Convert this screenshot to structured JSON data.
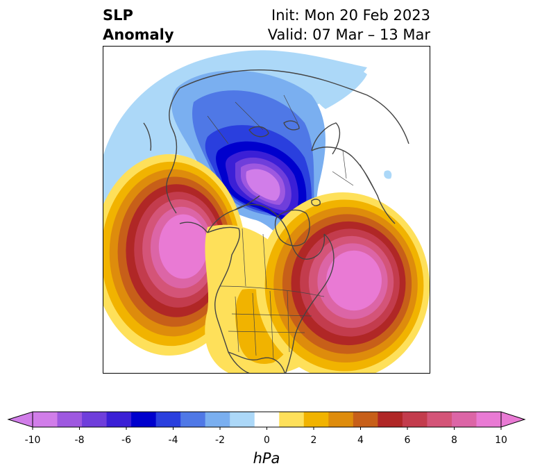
{
  "title": {
    "variable": "SLP",
    "kind": "Anomaly",
    "init": "Init: Mon 20 Feb 2023",
    "valid": "Valid: 07 Mar – 13 Mar"
  },
  "colorbar": {
    "unit": "hPa",
    "extend": "both",
    "levels": [
      -10,
      -9,
      -8,
      -7,
      -6,
      -5,
      -4,
      -3,
      -2,
      -1,
      1,
      2,
      3,
      4,
      5,
      6,
      7,
      8,
      9,
      10
    ],
    "ticks": [
      "-10",
      "-8",
      "-6",
      "-4",
      "-2",
      "0",
      "2",
      "4",
      "6",
      "8",
      "10"
    ],
    "colors": [
      "#d17de9",
      "#9e58e0",
      "#6f3edb",
      "#3b1fd6",
      "#0000cd",
      "#2a3fde",
      "#4f78e6",
      "#7aaff0",
      "#acd8f8",
      "#ffffff",
      "#fee05a",
      "#f1b300",
      "#de8c0c",
      "#c75f19",
      "#b02726",
      "#c33c4d",
      "#d45478",
      "#dc65a6",
      "#e97ad4"
    ]
  },
  "map": {
    "projection": "north-polar-stereographic",
    "features": [
      "coastlines",
      "country-borders",
      "us-state-borders",
      "canada-province-borders"
    ],
    "anomaly_centers": [
      {
        "name": "north-pacific-high",
        "sign": "positive",
        "peak_hPa": 10
      },
      {
        "name": "north-atlantic-high",
        "sign": "positive",
        "peak_hPa": 10
      },
      {
        "name": "arctic-low",
        "sign": "negative",
        "peak_hPa": -10
      },
      {
        "name": "north-america-high",
        "sign": "positive",
        "peak_hPa": 3
      }
    ]
  }
}
